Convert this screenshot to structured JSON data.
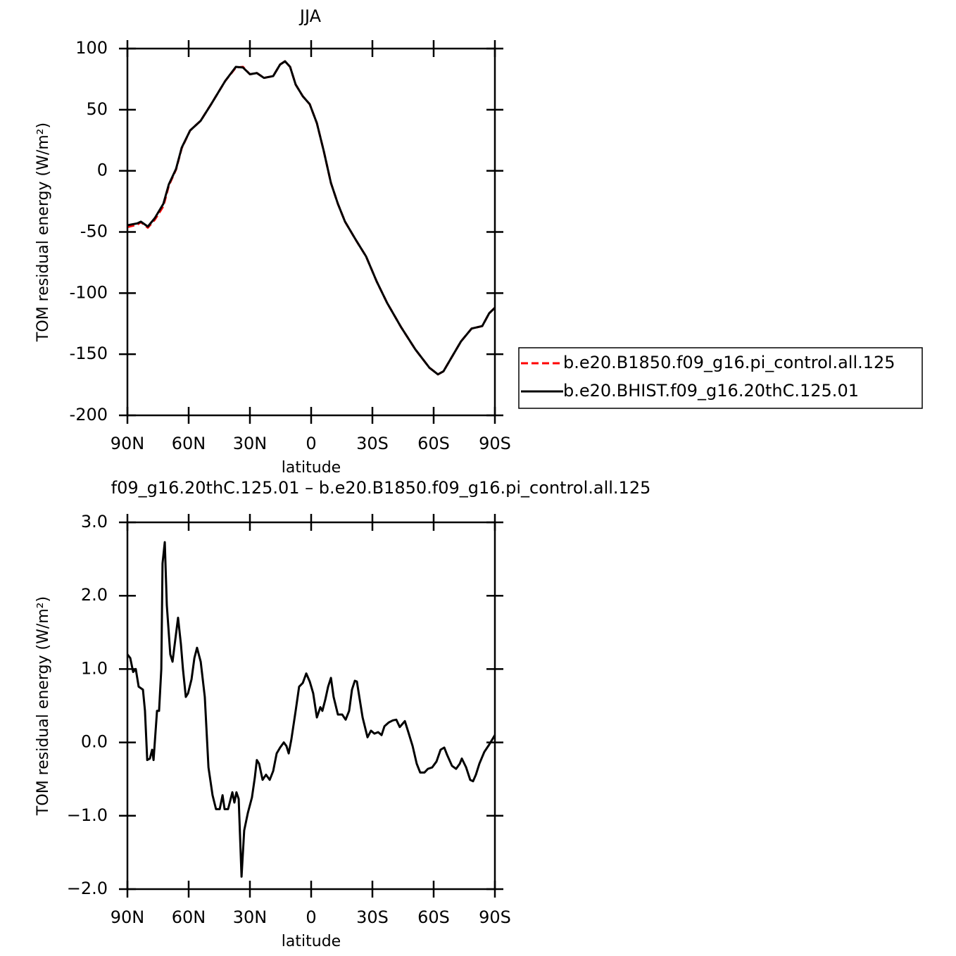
{
  "chart_data": [
    {
      "type": "line",
      "title": "JJA",
      "xlabel": "latitude",
      "ylabel": "TOM residual energy (W/m²)",
      "xlim": [
        90,
        -90
      ],
      "xticks": [
        {
          "value": 90,
          "label": "90N"
        },
        {
          "value": 60,
          "label": "60N"
        },
        {
          "value": 30,
          "label": "30N"
        },
        0,
        {
          "value": -30,
          "label": "30S"
        },
        {
          "value": -60,
          "label": "60S"
        },
        {
          "value": -90,
          "label": "90S"
        }
      ],
      "ylim": [
        -200,
        100
      ],
      "yticks": [
        -200,
        -150,
        -100,
        -50,
        0,
        50,
        100
      ],
      "legend": "right",
      "x": [
        90,
        85.2,
        83.4,
        80.0,
        76.6,
        72.4,
        69.7,
        66.2,
        63.4,
        59.3,
        54.1,
        49.0,
        42.1,
        36.9,
        33.4,
        30.0,
        26.6,
        23.1,
        18.6,
        15.2,
        12.8,
        10.3,
        7.6,
        4.1,
        0.7,
        -2.8,
        -6.2,
        -9.7,
        -13.1,
        -16.6,
        -21.7,
        -26.9,
        -32.1,
        -37.2,
        -44.1,
        -51.0,
        -57.9,
        -62.1,
        -64.8,
        -68.3,
        -73.4,
        -78.6,
        -83.8,
        -87.2,
        -90
      ],
      "series": [
        {
          "name": "b.e20.B1850.f09_g16.pi_control.all.125",
          "color": "#ff0000",
          "dash": "dashed",
          "values": [
            -46,
            -44,
            -42,
            -46.5,
            -40,
            -29,
            -12,
            1,
            18.5,
            33,
            41,
            54.5,
            73.5,
            84.5,
            85,
            79,
            80,
            76,
            77.5,
            87,
            89.6,
            85,
            70.6,
            61,
            54.5,
            39,
            16,
            -10,
            -27,
            -41.6,
            -56,
            -70,
            -90.5,
            -108,
            -128,
            -146,
            -161,
            -166.5,
            -164,
            -154,
            -139.5,
            -129,
            -127,
            -116.5,
            -112
          ]
        },
        {
          "name": "b.e20.BHIST.f09_g16.20thC.125.01",
          "color": "#000000",
          "dash": "solid",
          "values": [
            -44.5,
            -43,
            -41.6,
            -45.6,
            -38.7,
            -27,
            -11,
            1.5,
            19,
            33,
            41,
            54.5,
            73.5,
            85,
            84.5,
            79,
            80,
            76,
            77.5,
            87,
            89.6,
            85,
            70.6,
            61,
            54.5,
            39,
            16,
            -10,
            -27,
            -41.6,
            -56,
            -70,
            -90.5,
            -108,
            -128,
            -146,
            -161,
            -166.5,
            -164,
            -154,
            -139.5,
            -129,
            -127,
            -116.5,
            -112
          ]
        }
      ]
    },
    {
      "type": "line",
      "title": "f09_g16.20thC.125.01 – b.e20.B1850.f09_g16.pi_control.all.125",
      "xlabel": "latitude",
      "ylabel": "TOM residual energy (W/m²)",
      "xlim": [
        90,
        -90
      ],
      "xticks": [
        {
          "value": 90,
          "label": "90N"
        },
        {
          "value": 60,
          "label": "60N"
        },
        {
          "value": 30,
          "label": "30N"
        },
        0,
        {
          "value": -30,
          "label": "30S"
        },
        {
          "value": -60,
          "label": "60S"
        },
        {
          "value": -90,
          "label": "90S"
        }
      ],
      "ylim": [
        -2,
        3
      ],
      "yticks": [
        {
          "value": -2,
          "label": "−2.0"
        },
        {
          "value": -1,
          "label": "−1.0"
        },
        {
          "value": 0,
          "label": "0.0"
        },
        {
          "value": 1,
          "label": "1.0"
        },
        {
          "value": 2,
          "label": "2.0"
        },
        {
          "value": 3,
          "label": "3.0"
        }
      ],
      "x": [
        90,
        88.6,
        87.2,
        85.9,
        84.5,
        82.4,
        81.4,
        80.3,
        79.0,
        77.9,
        77.2,
        75.5,
        74.5,
        73.4,
        72.8,
        71.7,
        70.7,
        69.0,
        67.9,
        66.6,
        65.2,
        63.8,
        62.8,
        61.4,
        60.3,
        58.6,
        57.2,
        55.9,
        54.1,
        52.1,
        50.3,
        48.3,
        46.6,
        44.8,
        43.4,
        42.4,
        40.7,
        38.6,
        37.6,
        36.6,
        35.5,
        34.1,
        32.8,
        31.0,
        29.0,
        27.6,
        26.6,
        25.5,
        23.8,
        22.1,
        20.3,
        18.6,
        16.9,
        15.2,
        13.4,
        12.1,
        11.0,
        9.7,
        7.6,
        5.9,
        4.1,
        2.4,
        0.7,
        -1.0,
        -2.8,
        -4.5,
        -5.5,
        -6.9,
        -8.3,
        -9.7,
        -11.0,
        -13.1,
        -15.2,
        -16.9,
        -18.6,
        -20.0,
        -21.4,
        -22.4,
        -25.2,
        -27.6,
        -29.3,
        -31.0,
        -32.8,
        -34.5,
        -35.9,
        -37.9,
        -40.0,
        -41.7,
        -43.4,
        -45.9,
        -47.6,
        -49.7,
        -51.7,
        -53.4,
        -55.5,
        -57.2,
        -59.3,
        -61.4,
        -63.4,
        -65.2,
        -66.6,
        -69.0,
        -71.0,
        -72.8,
        -73.8,
        -75.9,
        -77.9,
        -79.3,
        -80.7,
        -82.4,
        -84.8,
        -87.2,
        -90
      ],
      "series": [
        {
          "color": "#000000",
          "values": [
            1.2,
            1.15,
            0.96,
            1.0,
            0.76,
            0.72,
            0.43,
            -0.24,
            -0.22,
            -0.1,
            -0.24,
            0.43,
            0.43,
            1.0,
            2.44,
            2.73,
            1.87,
            1.2,
            1.1,
            1.39,
            1.7,
            1.34,
            1.0,
            0.62,
            0.67,
            0.86,
            1.15,
            1.29,
            1.1,
            0.62,
            -0.34,
            -0.72,
            -0.91,
            -0.91,
            -0.72,
            -0.91,
            -0.91,
            -0.68,
            -0.82,
            -0.68,
            -0.77,
            -1.83,
            -1.2,
            -0.96,
            -0.75,
            -0.48,
            -0.24,
            -0.29,
            -0.51,
            -0.44,
            -0.51,
            -0.39,
            -0.15,
            -0.07,
            0.0,
            -0.05,
            -0.15,
            0.04,
            0.43,
            0.76,
            0.81,
            0.94,
            0.83,
            0.67,
            0.34,
            0.48,
            0.43,
            0.58,
            0.76,
            0.88,
            0.62,
            0.38,
            0.38,
            0.31,
            0.43,
            0.72,
            0.84,
            0.83,
            0.34,
            0.07,
            0.16,
            0.12,
            0.14,
            0.1,
            0.22,
            0.27,
            0.3,
            0.31,
            0.21,
            0.29,
            0.14,
            -0.05,
            -0.29,
            -0.41,
            -0.41,
            -0.36,
            -0.34,
            -0.26,
            -0.1,
            -0.07,
            -0.17,
            -0.32,
            -0.36,
            -0.29,
            -0.22,
            -0.34,
            -0.51,
            -0.53,
            -0.44,
            -0.29,
            -0.13,
            -0.03,
            0.1
          ]
        }
      ]
    }
  ]
}
